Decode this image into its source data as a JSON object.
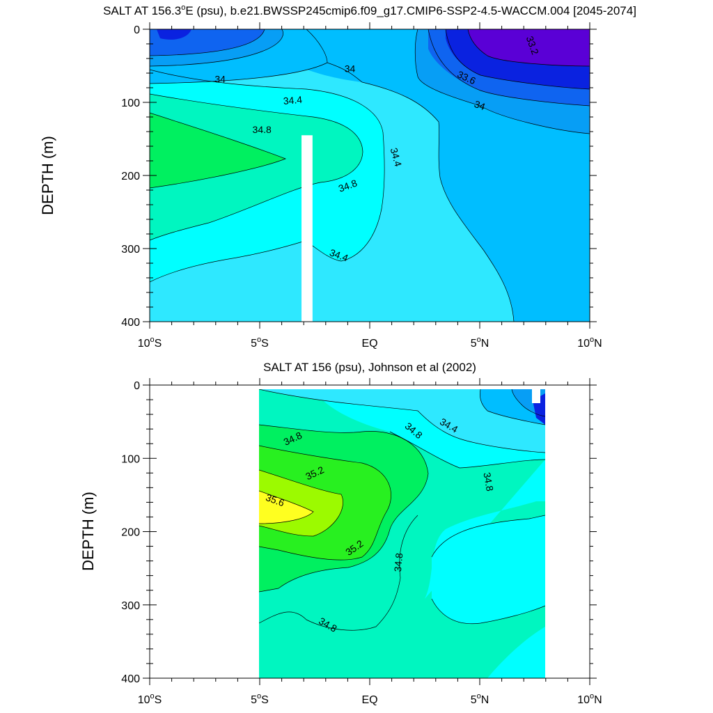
{
  "chart_data": [
    {
      "type": "contour",
      "title_main": "SALT AT 156.3",
      "title_deg": "o",
      "title_rest": "E (psu), b.e21.BWSSP245cmip6.f09_g17.CMIP6-SSP2-4.5-WACCM.004 [2045-2074]",
      "ylabel": "DEPTH (m)",
      "xlim": [
        -10,
        10
      ],
      "ylim": [
        400,
        0
      ],
      "yticks": [
        {
          "value": 0,
          "label": "0"
        },
        {
          "value": 100,
          "label": "100"
        },
        {
          "value": 200,
          "label": "200"
        },
        {
          "value": 300,
          "label": "300"
        },
        {
          "value": 400,
          "label": "400"
        }
      ],
      "xticks": [
        {
          "value": -10,
          "num": "10",
          "deg": "o",
          "hemi": "S"
        },
        {
          "value": -5,
          "num": "5",
          "deg": "o",
          "hemi": "S"
        },
        {
          "value": 0,
          "num": "EQ",
          "deg": "",
          "hemi": ""
        },
        {
          "value": 5,
          "num": "5",
          "deg": "o",
          "hemi": "N"
        },
        {
          "value": 10,
          "num": "10",
          "deg": "o",
          "hemi": "N"
        }
      ],
      "contour_labels": [
        {
          "text": "33.2",
          "x": 7.4,
          "y": 22,
          "angle": 70
        },
        {
          "text": "34",
          "x": -0.9,
          "y": 54,
          "angle": 0
        },
        {
          "text": "33.6",
          "x": 4.4,
          "y": 66,
          "angle": 25
        },
        {
          "text": "34",
          "x": -6.8,
          "y": 68,
          "angle": 0
        },
        {
          "text": "34.4",
          "x": -3.5,
          "y": 97,
          "angle": -5
        },
        {
          "text": "34",
          "x": 5.0,
          "y": 104,
          "angle": 20
        },
        {
          "text": "34.8",
          "x": -4.9,
          "y": 137,
          "angle": 0
        },
        {
          "text": "34.4",
          "x": 1.2,
          "y": 175,
          "angle": 75
        },
        {
          "text": "34.8",
          "x": -1.0,
          "y": 214,
          "angle": -20
        },
        {
          "text": "34.4",
          "x": -1.4,
          "y": 309,
          "angle": 20
        }
      ],
      "fill_colors": {
        "33.2": "#5a00d6",
        "33.6": "#0a22e0",
        "33.8": "#0f64f0",
        "34.0": "#079ef5",
        "34.2": "#00beff",
        "34.4": "#2ee8ff",
        "34.6": "#00ffff",
        "34.8": "#00f6c0",
        "35.0": "#00f060"
      },
      "missing_columns": [
        {
          "x_start": -3.1,
          "x_end": -2.6,
          "y_start": 145,
          "y_end": 400
        }
      ]
    },
    {
      "type": "contour",
      "title_main": "SALT AT 156 (psu), Johnson et al (2002)",
      "title_deg": "",
      "title_rest": "",
      "ylabel": "DEPTH (m)",
      "xlim": [
        -10,
        10
      ],
      "ylim": [
        400,
        0
      ],
      "data_extent_x": [
        -5,
        8
      ],
      "data_extent_y": [
        5,
        400
      ],
      "yticks": [
        {
          "value": 0,
          "label": "0"
        },
        {
          "value": 100,
          "label": "100"
        },
        {
          "value": 200,
          "label": "200"
        },
        {
          "value": 300,
          "label": "300"
        },
        {
          "value": 400,
          "label": "400"
        }
      ],
      "xticks": [
        {
          "value": -10,
          "num": "10",
          "deg": "o",
          "hemi": "S"
        },
        {
          "value": -5,
          "num": "5",
          "deg": "o",
          "hemi": "S"
        },
        {
          "value": 0,
          "num": "EQ",
          "deg": "",
          "hemi": ""
        },
        {
          "value": 5,
          "num": "5",
          "deg": "o",
          "hemi": "N"
        },
        {
          "value": 10,
          "num": "10",
          "deg": "o",
          "hemi": "N"
        }
      ],
      "contour_labels": [
        {
          "text": "34.4",
          "x": 3.6,
          "y": 55,
          "angle": 30
        },
        {
          "text": "34.8",
          "x": 2.0,
          "y": 62,
          "angle": 40
        },
        {
          "text": "34.8",
          "x": -3.5,
          "y": 73,
          "angle": -25
        },
        {
          "text": "35.2",
          "x": -2.5,
          "y": 120,
          "angle": -25
        },
        {
          "text": "35.6",
          "x": -4.3,
          "y": 157,
          "angle": 20
        },
        {
          "text": "34.8",
          "x": 5.4,
          "y": 132,
          "angle": 80
        },
        {
          "text": "35.2",
          "x": -0.7,
          "y": 222,
          "angle": -35
        },
        {
          "text": "34.8",
          "x": 1.3,
          "y": 242,
          "angle": -85
        },
        {
          "text": "34.8",
          "x": -1.9,
          "y": 327,
          "angle": 30
        }
      ],
      "fill_colors": {
        "34.0": "#079ef5",
        "34.2": "#00beff",
        "34.4": "#2ee8ff",
        "34.6": "#00ffff",
        "34.8": "#00f6c0",
        "35.0": "#00f060",
        "35.2": "#28f020",
        "35.4": "#9cfa00",
        "35.6": "#ffff20"
      }
    }
  ]
}
